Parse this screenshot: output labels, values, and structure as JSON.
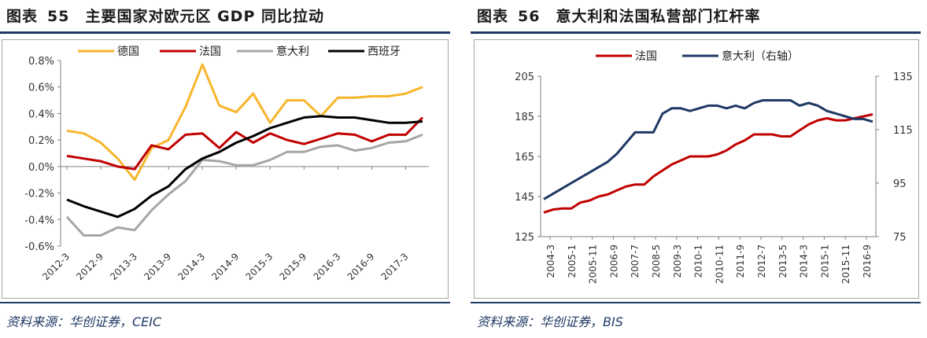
{
  "left": {
    "title_label": "图表",
    "title_number": "55",
    "title_text": "主要国家对欧元区 GDP 同比拉动",
    "source": "资料来源：华创证券，CEIC"
  },
  "right": {
    "title_label": "图表",
    "title_number": "56",
    "title_text": "意大利和法国私营部门杠杆率",
    "source": "资料来源：华创证券，BIS"
  },
  "chart_data": [
    {
      "type": "line",
      "title": "主要国家对欧元区 GDP 同比拉动",
      "xlabel": "",
      "ylabel": "",
      "ylim": [
        -0.6,
        0.8
      ],
      "y_tick_values": [
        -0.6,
        -0.4,
        -0.2,
        0.0,
        0.2,
        0.4,
        0.6,
        0.8
      ],
      "y_tick_labels": [
        "-0.6%",
        "-0.4%",
        "-0.2%",
        "0.0%",
        "0.2%",
        "0.4%",
        "0.6%",
        "0.8%"
      ],
      "x": [
        "2012-3",
        "2012-6",
        "2012-9",
        "2012-12",
        "2013-3",
        "2013-6",
        "2013-9",
        "2013-12",
        "2014-3",
        "2014-6",
        "2014-9",
        "2014-12",
        "2015-3",
        "2015-6",
        "2015-9",
        "2015-12",
        "2016-3",
        "2016-6",
        "2016-9",
        "2016-12",
        "2017-3",
        "2017-6"
      ],
      "x_tick_labels": [
        "2012-3",
        "2012-9",
        "2013-3",
        "2013-9",
        "2014-3",
        "2014-9",
        "2015-3",
        "2015-9",
        "2016-3",
        "2016-9",
        "2017-3"
      ],
      "x_tick_indices": [
        0,
        2,
        4,
        6,
        8,
        10,
        12,
        14,
        16,
        18,
        20
      ],
      "series": [
        {
          "name": "德国",
          "color": "#f7b52c",
          "values": [
            0.27,
            0.25,
            0.18,
            0.06,
            -0.1,
            0.14,
            0.2,
            0.45,
            0.77,
            0.46,
            0.41,
            0.55,
            0.33,
            0.5,
            0.5,
            0.38,
            0.52,
            0.52,
            0.53,
            0.53,
            0.55,
            0.6
          ]
        },
        {
          "name": "法国",
          "color": "#c00000",
          "values": [
            0.08,
            0.06,
            0.04,
            0.0,
            -0.02,
            0.16,
            0.13,
            0.24,
            0.25,
            0.14,
            0.26,
            0.18,
            0.25,
            0.2,
            0.17,
            0.21,
            0.25,
            0.24,
            0.19,
            0.24,
            0.24,
            0.37
          ]
        },
        {
          "name": "意大利",
          "color": "#a6a6a6",
          "values": [
            -0.38,
            -0.52,
            -0.52,
            -0.46,
            -0.48,
            -0.33,
            -0.21,
            -0.11,
            0.05,
            0.04,
            0.01,
            0.01,
            0.05,
            0.11,
            0.11,
            0.15,
            0.16,
            0.12,
            0.14,
            0.18,
            0.19,
            0.24
          ]
        },
        {
          "name": "西班牙",
          "color": "#000000",
          "values": [
            -0.25,
            -0.3,
            -0.34,
            -0.38,
            -0.32,
            -0.22,
            -0.15,
            -0.02,
            0.06,
            0.11,
            0.18,
            0.23,
            0.29,
            0.33,
            0.37,
            0.38,
            0.37,
            0.37,
            0.35,
            0.33,
            0.33,
            0.34
          ]
        }
      ],
      "legend_position": "top"
    },
    {
      "type": "line",
      "title": "意大利和法国私营部门杠杆率",
      "xlabel": "",
      "ylabel": "",
      "ylim": [
        125,
        205
      ],
      "y2lim": [
        75,
        135
      ],
      "y_tick_labels": [
        "125",
        "145",
        "165",
        "185",
        "205"
      ],
      "y_tick_values": [
        125,
        145,
        165,
        185,
        205
      ],
      "y2_tick_labels": [
        "75",
        "95",
        "115",
        "135"
      ],
      "y2_tick_values": [
        75,
        95,
        115,
        135
      ],
      "x_start": "2004-3",
      "x_end": "2017-3",
      "x_tick_labels": [
        "2004-3",
        "2005-1",
        "2005-11",
        "2006-9",
        "2007-7",
        "2008-5",
        "2009-3",
        "2010-1",
        "2010-11",
        "2011-9",
        "2012-7",
        "2013-5",
        "2014-3",
        "2015-1",
        "2015-11",
        "2016-9"
      ],
      "series": [
        {
          "name": "法国",
          "axis": "left",
          "color": "#c00000",
          "values": [
            137,
            138.5,
            139,
            139,
            142,
            143,
            145,
            146,
            148,
            150,
            151,
            151,
            155,
            158,
            161,
            163,
            165,
            165,
            165,
            166,
            168,
            171,
            173,
            176,
            176,
            176,
            175,
            175,
            178,
            181,
            183,
            184,
            183,
            183,
            184,
            185,
            186
          ]
        },
        {
          "name": "意大利（右轴）",
          "axis": "right",
          "color": "#1f3864",
          "values": [
            89,
            91,
            93,
            95,
            97,
            99,
            101,
            103,
            106,
            110,
            114,
            114,
            114,
            121,
            123,
            123,
            122,
            123,
            124,
            124,
            123,
            124,
            123,
            125,
            126,
            126,
            126,
            126,
            124,
            125,
            124,
            122,
            121,
            120,
            119,
            119,
            118
          ]
        }
      ],
      "legend_position": "top"
    }
  ]
}
